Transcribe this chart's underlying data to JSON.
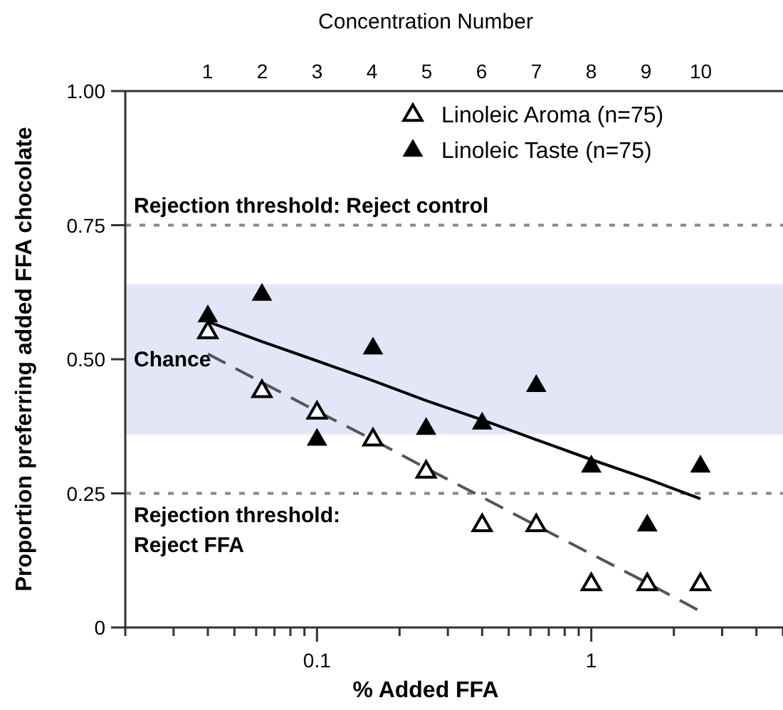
{
  "chart_data": {
    "type": "scatter",
    "xlabel": "% Added FFA",
    "ylabel": "Proportion preferring added FFA chocolate",
    "x2label": "Concentration Number",
    "log": "x",
    "xlim": [
      0.02,
      5
    ],
    "ylim": [
      0,
      1
    ],
    "xticks": [
      {
        "value": 0.02,
        "label": null
      },
      {
        "value": 0.03,
        "label": null
      },
      {
        "value": 0.04,
        "label": null
      },
      {
        "value": 0.05,
        "label": null
      },
      {
        "value": 0.06,
        "label": null
      },
      {
        "value": 0.07,
        "label": null
      },
      {
        "value": 0.08,
        "label": null
      },
      {
        "value": 0.09,
        "label": null
      },
      0.1,
      {
        "value": 0.2,
        "label": null
      },
      {
        "value": 0.3,
        "label": null
      },
      {
        "value": 0.4,
        "label": null
      },
      {
        "value": 0.5,
        "label": null
      },
      {
        "value": 0.6,
        "label": null
      },
      {
        "value": 0.7,
        "label": null
      },
      {
        "value": 0.8,
        "label": null
      },
      {
        "value": 0.9,
        "label": null
      },
      1,
      {
        "value": 2,
        "label": null
      },
      {
        "value": 3,
        "label": null
      },
      {
        "value": 4,
        "label": null
      },
      {
        "value": 5,
        "label": null
      }
    ],
    "x2lim": [
      -0.5,
      11.5
    ],
    "x2ticks": [
      1,
      2,
      3,
      4,
      5,
      6,
      7,
      8,
      9,
      10
    ],
    "yticks": [
      0,
      {
        "value": 0.25,
        "label": "0.25"
      },
      {
        "value": 0.5,
        "label": "0.50"
      },
      {
        "value": 0.75,
        "label": "0.75"
      },
      {
        "value": 1,
        "label": "1.00"
      }
    ],
    "x": [
      0.04,
      0.063,
      0.1,
      0.16,
      0.25,
      0.4,
      0.63,
      1,
      1.6,
      2.5
    ],
    "legend": "top right",
    "grid": false,
    "series": [
      {
        "name": "Linoleic Aroma (n=75)",
        "color": "#000000",
        "marker": "triangle-open",
        "values": [
          0.55,
          0.44,
          0.4,
          0.35,
          0.29,
          0.19,
          0.19,
          0.08,
          0.08,
          0.08
        ]
      },
      {
        "name": "Linoleic Taste (n=75)",
        "color": "#000000",
        "marker": "triangle",
        "values": [
          0.58,
          0.62,
          0.35,
          0.52,
          0.37,
          0.38,
          0.45,
          0.3,
          0.19,
          0.3
        ]
      },
      {
        "type": "line",
        "color": "#555555",
        "marker": "none",
        "line_style": "dashed",
        "values": [
          0.51,
          0.457,
          0.403,
          0.35,
          0.297,
          0.243,
          0.19,
          0.137,
          0.083,
          0.03
        ]
      },
      {
        "type": "line",
        "color": "#000000",
        "marker": "none",
        "line_style": "solid",
        "values": [
          0.57,
          0.533,
          0.497,
          0.46,
          0.423,
          0.387,
          0.35,
          0.313,
          0.277,
          0.24
        ]
      }
    ],
    "bands": [
      {
        "axis": "y",
        "from": 0.36,
        "to": 0.64,
        "label": "Chance",
        "color": "#e3e6f7"
      }
    ],
    "ref_lines": [
      {
        "axis": "y",
        "value": 0.75,
        "label": "Rejection threshold: Reject control",
        "color": "#888888",
        "line_style": "dotted"
      },
      {
        "axis": "y",
        "value": 0.25,
        "label": "Rejection threshold: Reject FFA",
        "color": "#888888",
        "line_style": "dotted"
      }
    ]
  }
}
